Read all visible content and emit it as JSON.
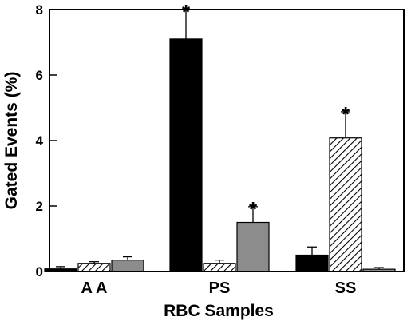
{
  "chart_data": {
    "type": "bar",
    "title": "",
    "xlabel": "RBC Samples",
    "ylabel": "Gated Events (%)",
    "ylim": [
      0,
      8
    ],
    "yticks": [
      0,
      2,
      4,
      6,
      8
    ],
    "categories": [
      "A A",
      "PS",
      "SS"
    ],
    "series": [
      {
        "values": [
          0.08,
          7.1,
          0.5
        ],
        "errors": [
          0.07,
          0.9,
          0.25
        ],
        "fill": "solid-black",
        "color": "#000000"
      },
      {
        "values": [
          0.25,
          0.25,
          4.08
        ],
        "errors": [
          0.05,
          0.1,
          0.8
        ],
        "fill": "diagonal-hatch",
        "color": "#ffffff"
      },
      {
        "values": [
          0.35,
          1.5,
          0.07
        ],
        "errors": [
          0.1,
          0.48,
          0.05
        ],
        "fill": "gray",
        "color": "#8c8c8c"
      }
    ],
    "annotations": [
      {
        "text": "*",
        "category": "PS",
        "series": 0
      },
      {
        "text": "*",
        "category": "PS",
        "series": 2
      },
      {
        "text": "*",
        "category": "SS",
        "series": 1
      }
    ],
    "grid": false,
    "legend": "none"
  }
}
